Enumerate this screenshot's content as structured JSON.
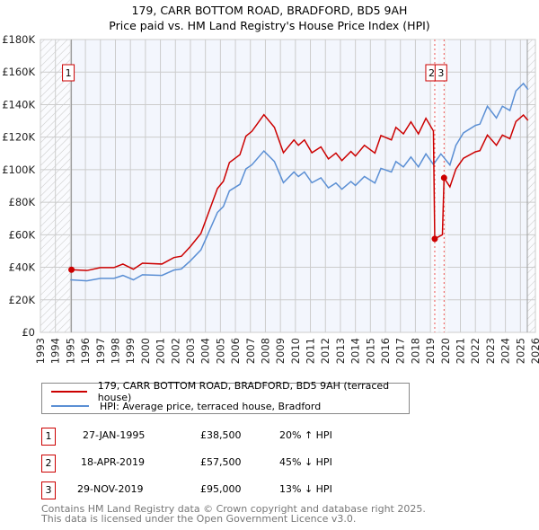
{
  "chart_data": {
    "type": "line",
    "title": "179, CARR BOTTOM ROAD, BRADFORD, BD5 9AH",
    "subtitle": "Price paid vs. HM Land Registry's House Price Index (HPI)",
    "xlim": [
      1993,
      2026
    ],
    "ylim": [
      0,
      180000
    ],
    "yticks": [
      {
        "v": 0,
        "label": "£0"
      },
      {
        "v": 20000,
        "label": "£20K"
      },
      {
        "v": 40000,
        "label": "£40K"
      },
      {
        "v": 60000,
        "label": "£60K"
      },
      {
        "v": 80000,
        "label": "£80K"
      },
      {
        "v": 100000,
        "label": "£100K"
      },
      {
        "v": 120000,
        "label": "£120K"
      },
      {
        "v": 140000,
        "label": "£140K"
      },
      {
        "v": 160000,
        "label": "£160K"
      },
      {
        "v": 180000,
        "label": "£180K"
      }
    ],
    "xticks": [
      "1993",
      "1994",
      "1995",
      "1996",
      "1997",
      "1998",
      "1999",
      "2000",
      "2001",
      "2002",
      "2003",
      "2004",
      "2005",
      "2006",
      "2007",
      "2008",
      "2009",
      "2010",
      "2011",
      "2012",
      "2013",
      "2014",
      "2015",
      "2016",
      "2017",
      "2018",
      "2019",
      "2020",
      "2021",
      "2022",
      "2023",
      "2024",
      "2025",
      "2026"
    ],
    "grid": true,
    "hatched_ranges": [
      [
        1993,
        1995.07
      ],
      [
        2025.46,
        2026
      ]
    ],
    "series": [
      {
        "name": "179, CARR BOTTOM ROAD, BRADFORD, BD5 9AH (terraced house)",
        "color": "#cc0000",
        "x": [
          1995.07,
          1996.1,
          1997,
          1997.9,
          1998.5,
          1999.2,
          1999.8,
          2001.1,
          2001.9,
          2002.4,
          2003,
          2003.7,
          2004.1,
          2004.8,
          2005.2,
          2005.6,
          2006.3,
          2006.7,
          2007.1,
          2007.9,
          2008.6,
          2009.2,
          2009.9,
          2010.2,
          2010.6,
          2011.1,
          2011.7,
          2012.2,
          2012.7,
          2013.1,
          2013.7,
          2014,
          2014.6,
          2015.3,
          2015.7,
          2016.4,
          2016.7,
          2017.2,
          2017.7,
          2018.2,
          2018.7,
          2019.2,
          2019.29,
          2019.8,
          2019.91,
          2020.3,
          2020.7,
          2021.2,
          2022,
          2022.3,
          2022.8,
          2023.4,
          2023.8,
          2024.3,
          2024.7,
          2025.2,
          2025.5
        ],
        "y": [
          38500,
          38000,
          39800,
          39800,
          42000,
          38800,
          42500,
          42000,
          46000,
          46800,
          52800,
          60800,
          70800,
          88400,
          92900,
          104400,
          109200,
          120600,
          123600,
          133800,
          126000,
          110400,
          118300,
          115000,
          118300,
          110400,
          114000,
          106600,
          110200,
          105600,
          111200,
          108400,
          115000,
          110200,
          121000,
          118300,
          126000,
          122000,
          129400,
          122000,
          131600,
          123800,
          57500,
          60000,
          95000,
          89400,
          100400,
          107000,
          111000,
          111700,
          121300,
          115000,
          121300,
          119000,
          129600,
          133600,
          130300
        ]
      },
      {
        "name": "HPI: Average price, terraced house, Bradford",
        "color": "#5b8fd4",
        "x": [
          1995.0,
          1996.1,
          1997,
          1997.9,
          1998.5,
          1999.2,
          1999.8,
          2001.1,
          2001.9,
          2002.4,
          2003,
          2003.7,
          2004.1,
          2004.8,
          2005.2,
          2005.6,
          2006.3,
          2006.7,
          2007.1,
          2007.9,
          2008.6,
          2009.2,
          2009.9,
          2010.2,
          2010.6,
          2011.1,
          2011.7,
          2012.2,
          2012.7,
          2013.1,
          2013.7,
          2014,
          2014.6,
          2015.3,
          2015.7,
          2016.4,
          2016.7,
          2017.2,
          2017.7,
          2018.2,
          2018.7,
          2019.2,
          2019.7,
          2020.3,
          2020.7,
          2021.2,
          2022,
          2022.3,
          2022.8,
          2023.4,
          2023.8,
          2024.3,
          2024.7,
          2025.2,
          2025.5
        ],
        "y": [
          32300,
          31700,
          33200,
          33200,
          35000,
          32300,
          35400,
          35000,
          38300,
          39000,
          44000,
          50700,
          59000,
          73700,
          77400,
          87000,
          91000,
          100500,
          103000,
          111500,
          105000,
          92000,
          98600,
          95800,
          98600,
          92000,
          95000,
          88800,
          91800,
          88000,
          92700,
          90300,
          95800,
          91800,
          100800,
          98600,
          105000,
          101700,
          107800,
          101700,
          109700,
          103200,
          109700,
          102900,
          115000,
          122600,
          127200,
          128000,
          139000,
          131800,
          139000,
          136400,
          148400,
          153000,
          149300
        ]
      }
    ],
    "sales": [
      {
        "id": "1",
        "x": 1995.07,
        "y": 38500
      },
      {
        "id": "2",
        "x": 2019.29,
        "y": 57500
      },
      {
        "id": "3",
        "x": 2019.91,
        "y": 95000
      }
    ]
  },
  "legend": {
    "red": "179, CARR BOTTOM ROAD, BRADFORD, BD5 9AH (terraced house)",
    "blue": "HPI: Average price, terraced house, Bradford"
  },
  "transactions": [
    {
      "id": "1",
      "date": "27-JAN-1995",
      "price": "£38,500",
      "hpi": "20% ↑ HPI"
    },
    {
      "id": "2",
      "date": "18-APR-2019",
      "price": "£57,500",
      "hpi": "45% ↓ HPI"
    },
    {
      "id": "3",
      "date": "29-NOV-2019",
      "price": "£95,000",
      "hpi": "13% ↓ HPI"
    }
  ],
  "footer": {
    "line1": "Contains HM Land Registry data © Crown copyright and database right 2025.",
    "line2": "This data is licensed under the Open Government Licence v3.0."
  }
}
